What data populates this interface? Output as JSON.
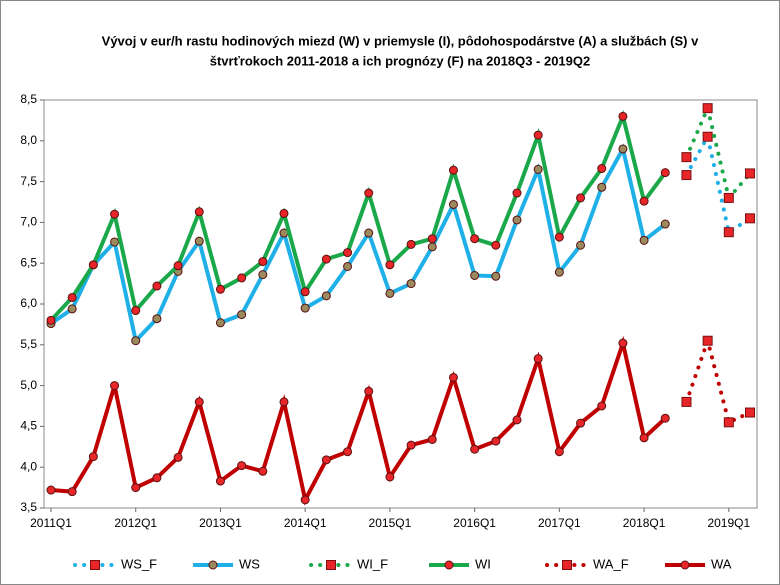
{
  "chart_data": {
    "type": "line",
    "title": [
      "Vývoj v eur/h rastu hodinových miezd (W) v priemysle (I), pôdohospodárstve (A) a službách (S) v",
      "štvrťrokoch 2011-2018 a ich prognózy (F) na 2018Q3 - 2019Q2"
    ],
    "categories": [
      "2011Q1",
      null,
      null,
      null,
      "2012Q1",
      null,
      null,
      null,
      "2013Q1",
      null,
      null,
      null,
      "2014Q1",
      null,
      null,
      null,
      "2015Q1",
      null,
      null,
      null,
      "2016Q1",
      null,
      null,
      null,
      "2017Q1",
      null,
      null,
      null,
      "2018Q1",
      null,
      null,
      null,
      "2019Q1",
      null
    ],
    "ylim": [
      3.5,
      8.5
    ],
    "yticks": [
      {
        "value": 3.5,
        "label": "3,5"
      },
      {
        "value": 4,
        "label": "4,0"
      },
      {
        "value": 4.5,
        "label": "4,5"
      },
      {
        "value": 5,
        "label": "5,0"
      },
      {
        "value": 5.5,
        "label": "5,5"
      },
      {
        "value": 6,
        "label": "6,0"
      },
      {
        "value": 6.5,
        "label": "6,5"
      },
      {
        "value": 7,
        "label": "7,0"
      },
      {
        "value": 7.5,
        "label": "7,5"
      },
      {
        "value": 8,
        "label": "8,0"
      },
      {
        "value": 8.5,
        "label": "8,5"
      }
    ],
    "grid": false,
    "legend": "bottom",
    "series": [
      {
        "name": "WS_F",
        "color": "#1fb0e8",
        "marker_color": "#e8262a",
        "dashed": true,
        "values": [
          null,
          null,
          null,
          null,
          null,
          null,
          null,
          null,
          null,
          null,
          null,
          null,
          null,
          null,
          null,
          null,
          null,
          null,
          null,
          null,
          null,
          null,
          null,
          null,
          null,
          null,
          null,
          null,
          null,
          null,
          7.58,
          8.05,
          6.88,
          7.05
        ]
      },
      {
        "name": "WS",
        "color": "#1fb0e8",
        "marker_color": "#9a8a5e",
        "dashed": false,
        "values": [
          5.76,
          5.94,
          6.48,
          6.76,
          5.55,
          5.82,
          6.4,
          6.77,
          5.77,
          5.87,
          6.36,
          6.87,
          5.95,
          6.1,
          6.46,
          6.87,
          6.13,
          6.25,
          6.7,
          7.22,
          6.35,
          6.34,
          7.03,
          7.65,
          6.39,
          6.72,
          7.43,
          7.9,
          6.78,
          6.98,
          null,
          null,
          null,
          null
        ]
      },
      {
        "name": "WI_F",
        "color": "#1aa84a",
        "marker_color": "#e8262a",
        "dashed": true,
        "values": [
          null,
          null,
          null,
          null,
          null,
          null,
          null,
          null,
          null,
          null,
          null,
          null,
          null,
          null,
          null,
          null,
          null,
          null,
          null,
          null,
          null,
          null,
          null,
          null,
          null,
          null,
          null,
          null,
          null,
          null,
          7.8,
          8.4,
          7.3,
          7.6
        ]
      },
      {
        "name": "WI",
        "color": "#1aa84a",
        "marker_color": "#e8262a",
        "dashed": false,
        "values": [
          5.8,
          6.08,
          6.48,
          7.1,
          5.92,
          6.22,
          6.47,
          7.13,
          6.18,
          6.32,
          6.52,
          7.11,
          6.15,
          6.55,
          6.63,
          7.36,
          6.48,
          6.73,
          6.8,
          7.64,
          6.8,
          6.72,
          7.36,
          8.07,
          6.82,
          7.3,
          7.66,
          8.3,
          7.26,
          7.61,
          null,
          null,
          null,
          null
        ]
      },
      {
        "name": "WA_F",
        "color": "#c00000",
        "marker_color": "#e8262a",
        "dashed": true,
        "values": [
          null,
          null,
          null,
          null,
          null,
          null,
          null,
          null,
          null,
          null,
          null,
          null,
          null,
          null,
          null,
          null,
          null,
          null,
          null,
          null,
          null,
          null,
          null,
          null,
          null,
          null,
          null,
          null,
          null,
          null,
          4.8,
          5.55,
          4.55,
          4.67
        ]
      },
      {
        "name": "WA",
        "color": "#c00000",
        "marker_color": "#e8262a",
        "dashed": false,
        "values": [
          3.72,
          3.7,
          4.13,
          5.0,
          3.75,
          3.87,
          4.12,
          4.8,
          3.83,
          4.02,
          3.95,
          4.8,
          3.6,
          4.09,
          4.19,
          4.93,
          3.88,
          4.27,
          4.34,
          5.1,
          4.22,
          4.32,
          4.58,
          5.33,
          4.19,
          4.54,
          4.75,
          5.52,
          4.36,
          4.6,
          null,
          null,
          null,
          null
        ]
      }
    ]
  }
}
